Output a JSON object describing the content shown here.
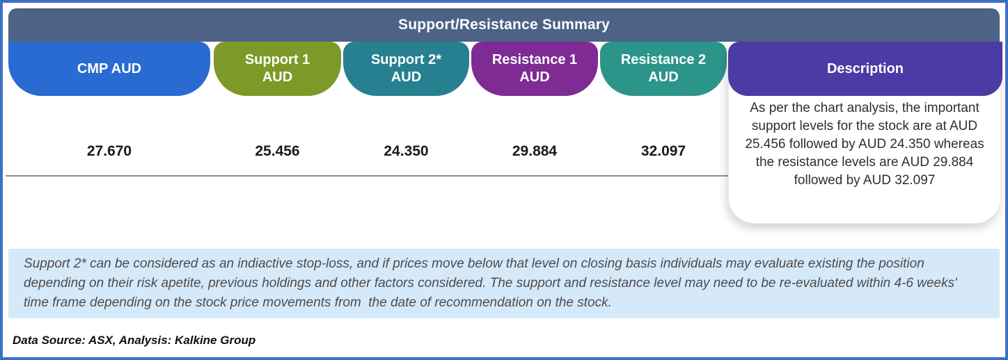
{
  "title": "Support/Resistance Summary",
  "columns": [
    {
      "line1": "CMP AUD",
      "line2": "",
      "value": "27.670",
      "color": "#2a6ad3"
    },
    {
      "line1": "Support 1",
      "line2": "AUD",
      "value": "25.456",
      "color": "#7d9a28"
    },
    {
      "line1": "Support 2*",
      "line2": "AUD",
      "value": "24.350",
      "color": "#27808f"
    },
    {
      "line1": "Resistance 1",
      "line2": "AUD",
      "value": "29.884",
      "color": "#7e2b94"
    },
    {
      "line1": "Resistance 2",
      "line2": "AUD",
      "value": "32.097",
      "color": "#2b958a"
    }
  ],
  "description": {
    "header": "Description",
    "color": "#4b3ba5",
    "text": "As per the chart analysis, the important support levels for the stock are at AUD 25.456 followed by AUD 24.350 whereas the resistance levels are AUD 29.884 followed by AUD 32.097"
  },
  "footnote": "Support 2* can be considered as an indiactive stop-loss, and if prices move below that level on closing basis individuals may evaluate existing the position depending on their risk apetite, previous holdings and other factors considered. The support and resistance level may need to be re-evaluated within 4-6 weeks' time frame depending on the stock price movements from  the date of recommendation on the stock.",
  "source": "Data Source: ASX, Analysis: Kalkine Group",
  "colors": {
    "frame_border": "#3f6fc4",
    "header_bar": "#4d6285",
    "footnote_bg": "#d5e9f9",
    "divider": "#8e8e8e"
  }
}
